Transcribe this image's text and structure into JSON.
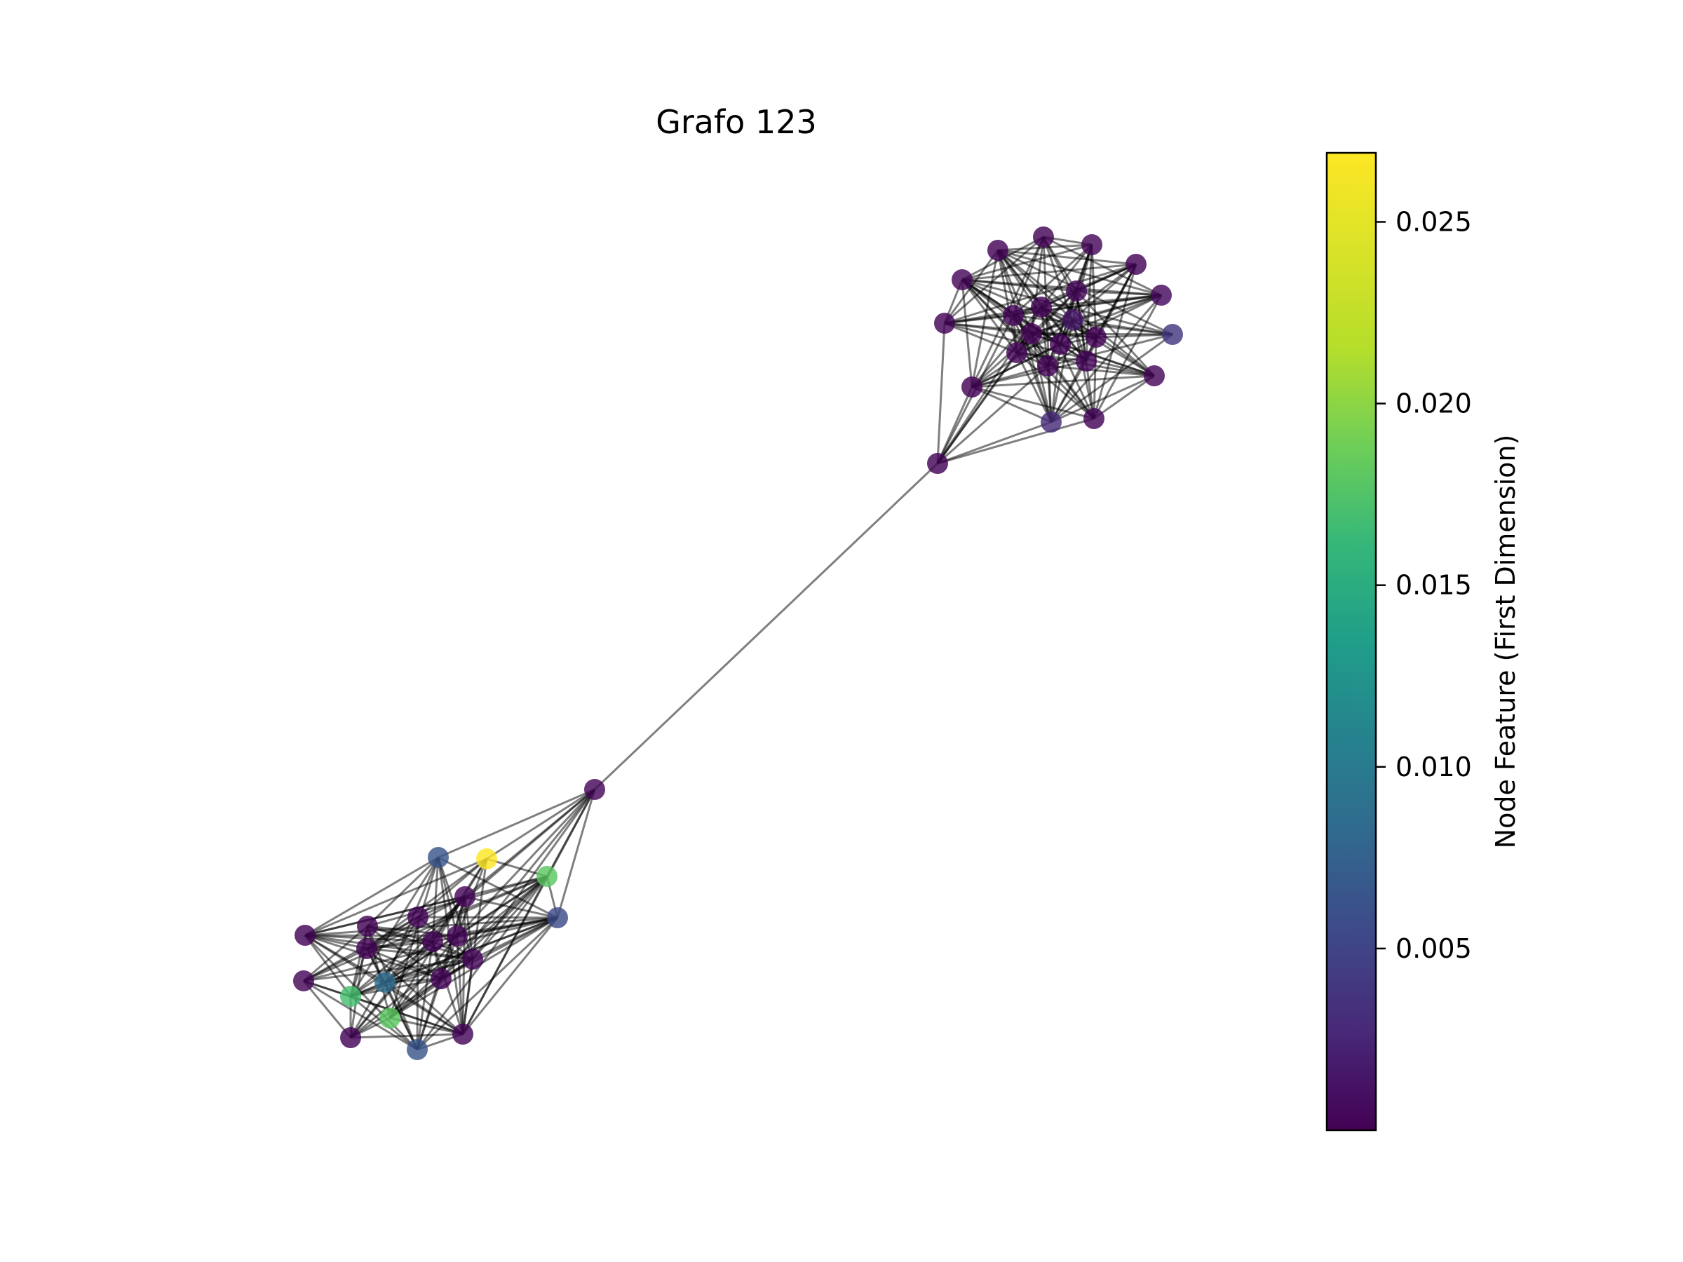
{
  "title": "Grafo 123",
  "colorbar": {
    "label": "Node Feature (First Dimension)",
    "colormap": "viridis",
    "min": 0.0,
    "max": 0.0269,
    "ticks": [
      {
        "value": 0.025,
        "label": "0.025"
      },
      {
        "value": 0.02,
        "label": "0.020"
      },
      {
        "value": 0.015,
        "label": "0.015"
      },
      {
        "value": 0.01,
        "label": "0.010"
      },
      {
        "value": 0.005,
        "label": "0.005"
      }
    ]
  },
  "graph": {
    "node_count": 48,
    "node_color_feature": "first dimension",
    "edge_color": "#000000",
    "clusters": [
      "upper-right-cluster",
      "lower-left-cluster"
    ],
    "bridge": "single edge connecting the two clusters"
  }
}
